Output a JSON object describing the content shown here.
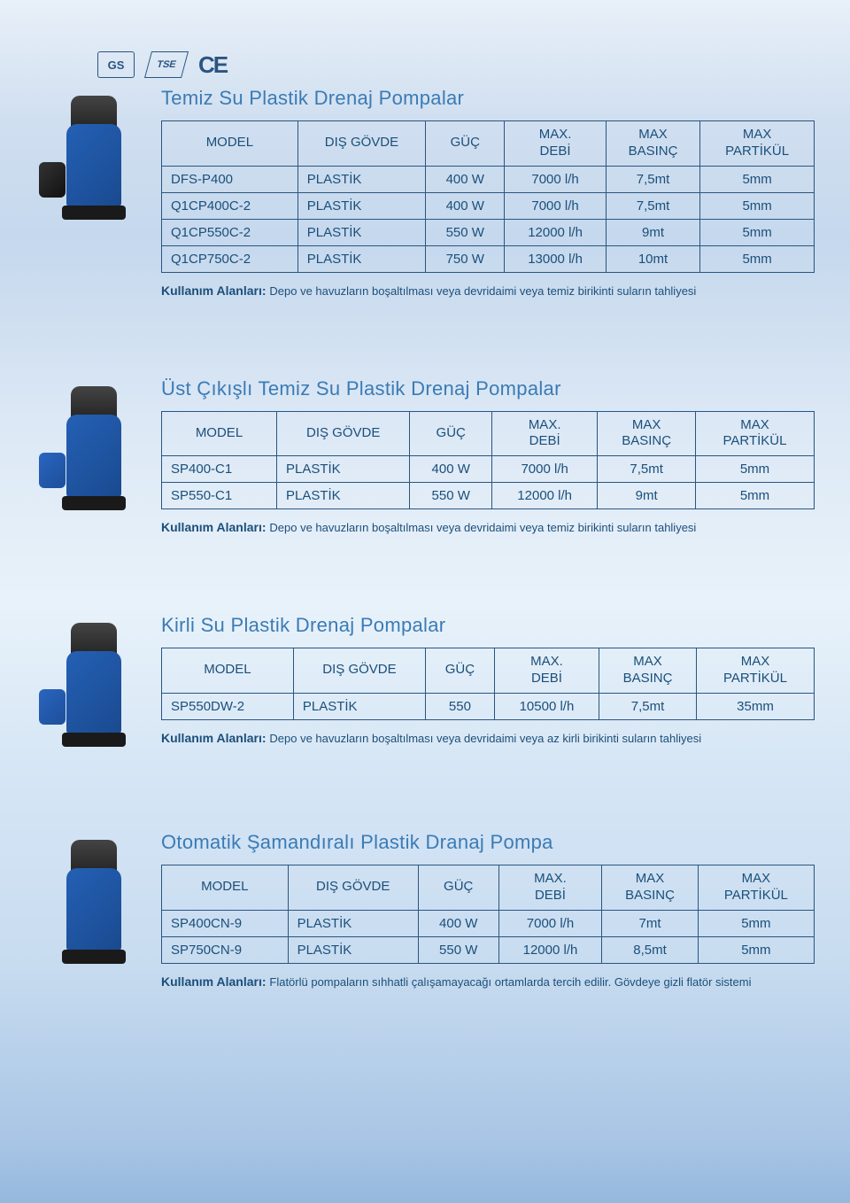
{
  "cert_marks": {
    "gs": "GS",
    "tse": "TSE",
    "ce": "CE"
  },
  "common": {
    "cols": {
      "model": "MODEL",
      "body": "DIŞ GÖVDE",
      "power": "GÜÇ",
      "flow": "MAX.\nDEBİ",
      "pressure": "MAX\nBASINÇ",
      "particle": "MAX\nPARTİKÜL"
    },
    "usage_label": "Kullanım Alanları:"
  },
  "sections": [
    {
      "title": "Temiz Su Plastik Drenaj Pompalar",
      "float_class": "dark",
      "rows": [
        {
          "model": "DFS-P400",
          "body": "PLASTİK",
          "power": "400 W",
          "flow": "7000 l/h",
          "pressure": "7,5mt",
          "particle": "5mm"
        },
        {
          "model": "Q1CP400C-2",
          "body": "PLASTİK",
          "power": "400 W",
          "flow": "7000 l/h",
          "pressure": "7,5mt",
          "particle": "5mm"
        },
        {
          "model": "Q1CP550C-2",
          "body": "PLASTİK",
          "power": "550 W",
          "flow": "12000 l/h",
          "pressure": "9mt",
          "particle": "5mm"
        },
        {
          "model": "Q1CP750C-2",
          "body": "PLASTİK",
          "power": "750 W",
          "flow": "13000 l/h",
          "pressure": "10mt",
          "particle": "5mm"
        }
      ],
      "usage": "Depo ve havuzların boşaltılması veya devridaimi veya temiz birikinti suların tahliyesi"
    },
    {
      "title": "Üst Çıkışlı Temiz Su Plastik Drenaj Pompalar",
      "float_class": "",
      "rows": [
        {
          "model": "SP400-C1",
          "body": "PLASTİK",
          "power": "400 W",
          "flow": "7000 l/h",
          "pressure": "7,5mt",
          "particle": "5mm"
        },
        {
          "model": "SP550-C1",
          "body": "PLASTİK",
          "power": "550 W",
          "flow": "12000 l/h",
          "pressure": "9mt",
          "particle": "5mm"
        }
      ],
      "usage": "Depo ve havuzların boşaltılması veya devridaimi veya temiz birikinti suların tahliyesi"
    },
    {
      "title": "Kirli Su Plastik Drenaj Pompalar",
      "float_class": "",
      "rows": [
        {
          "model": "SP550DW-2",
          "body": "PLASTİK",
          "power": "550",
          "flow": "10500 l/h",
          "pressure": "7,5mt",
          "particle": "35mm"
        }
      ],
      "usage": "Depo ve havuzların boşaltılması veya devridaimi veya az kirli birikinti suların tahliyesi"
    },
    {
      "title": "Otomatik Şamandıralı Plastik Dranaj Pompa",
      "float_class": "hidden",
      "rows": [
        {
          "model": "SP400CN-9",
          "body": "PLASTİK",
          "power": "400 W",
          "flow": "7000 l/h",
          "pressure": "7mt",
          "particle": "5mm"
        },
        {
          "model": "SP750CN-9",
          "body": "PLASTİK",
          "power": "550 W",
          "flow": "12000 l/h",
          "pressure": "8,5mt",
          "particle": "5mm"
        }
      ],
      "usage": "Flatörlü pompaların sıhhatli çalışamayacağı ortamlarda tercih edilir. Gövdeye gizli flatör sistemi"
    }
  ]
}
